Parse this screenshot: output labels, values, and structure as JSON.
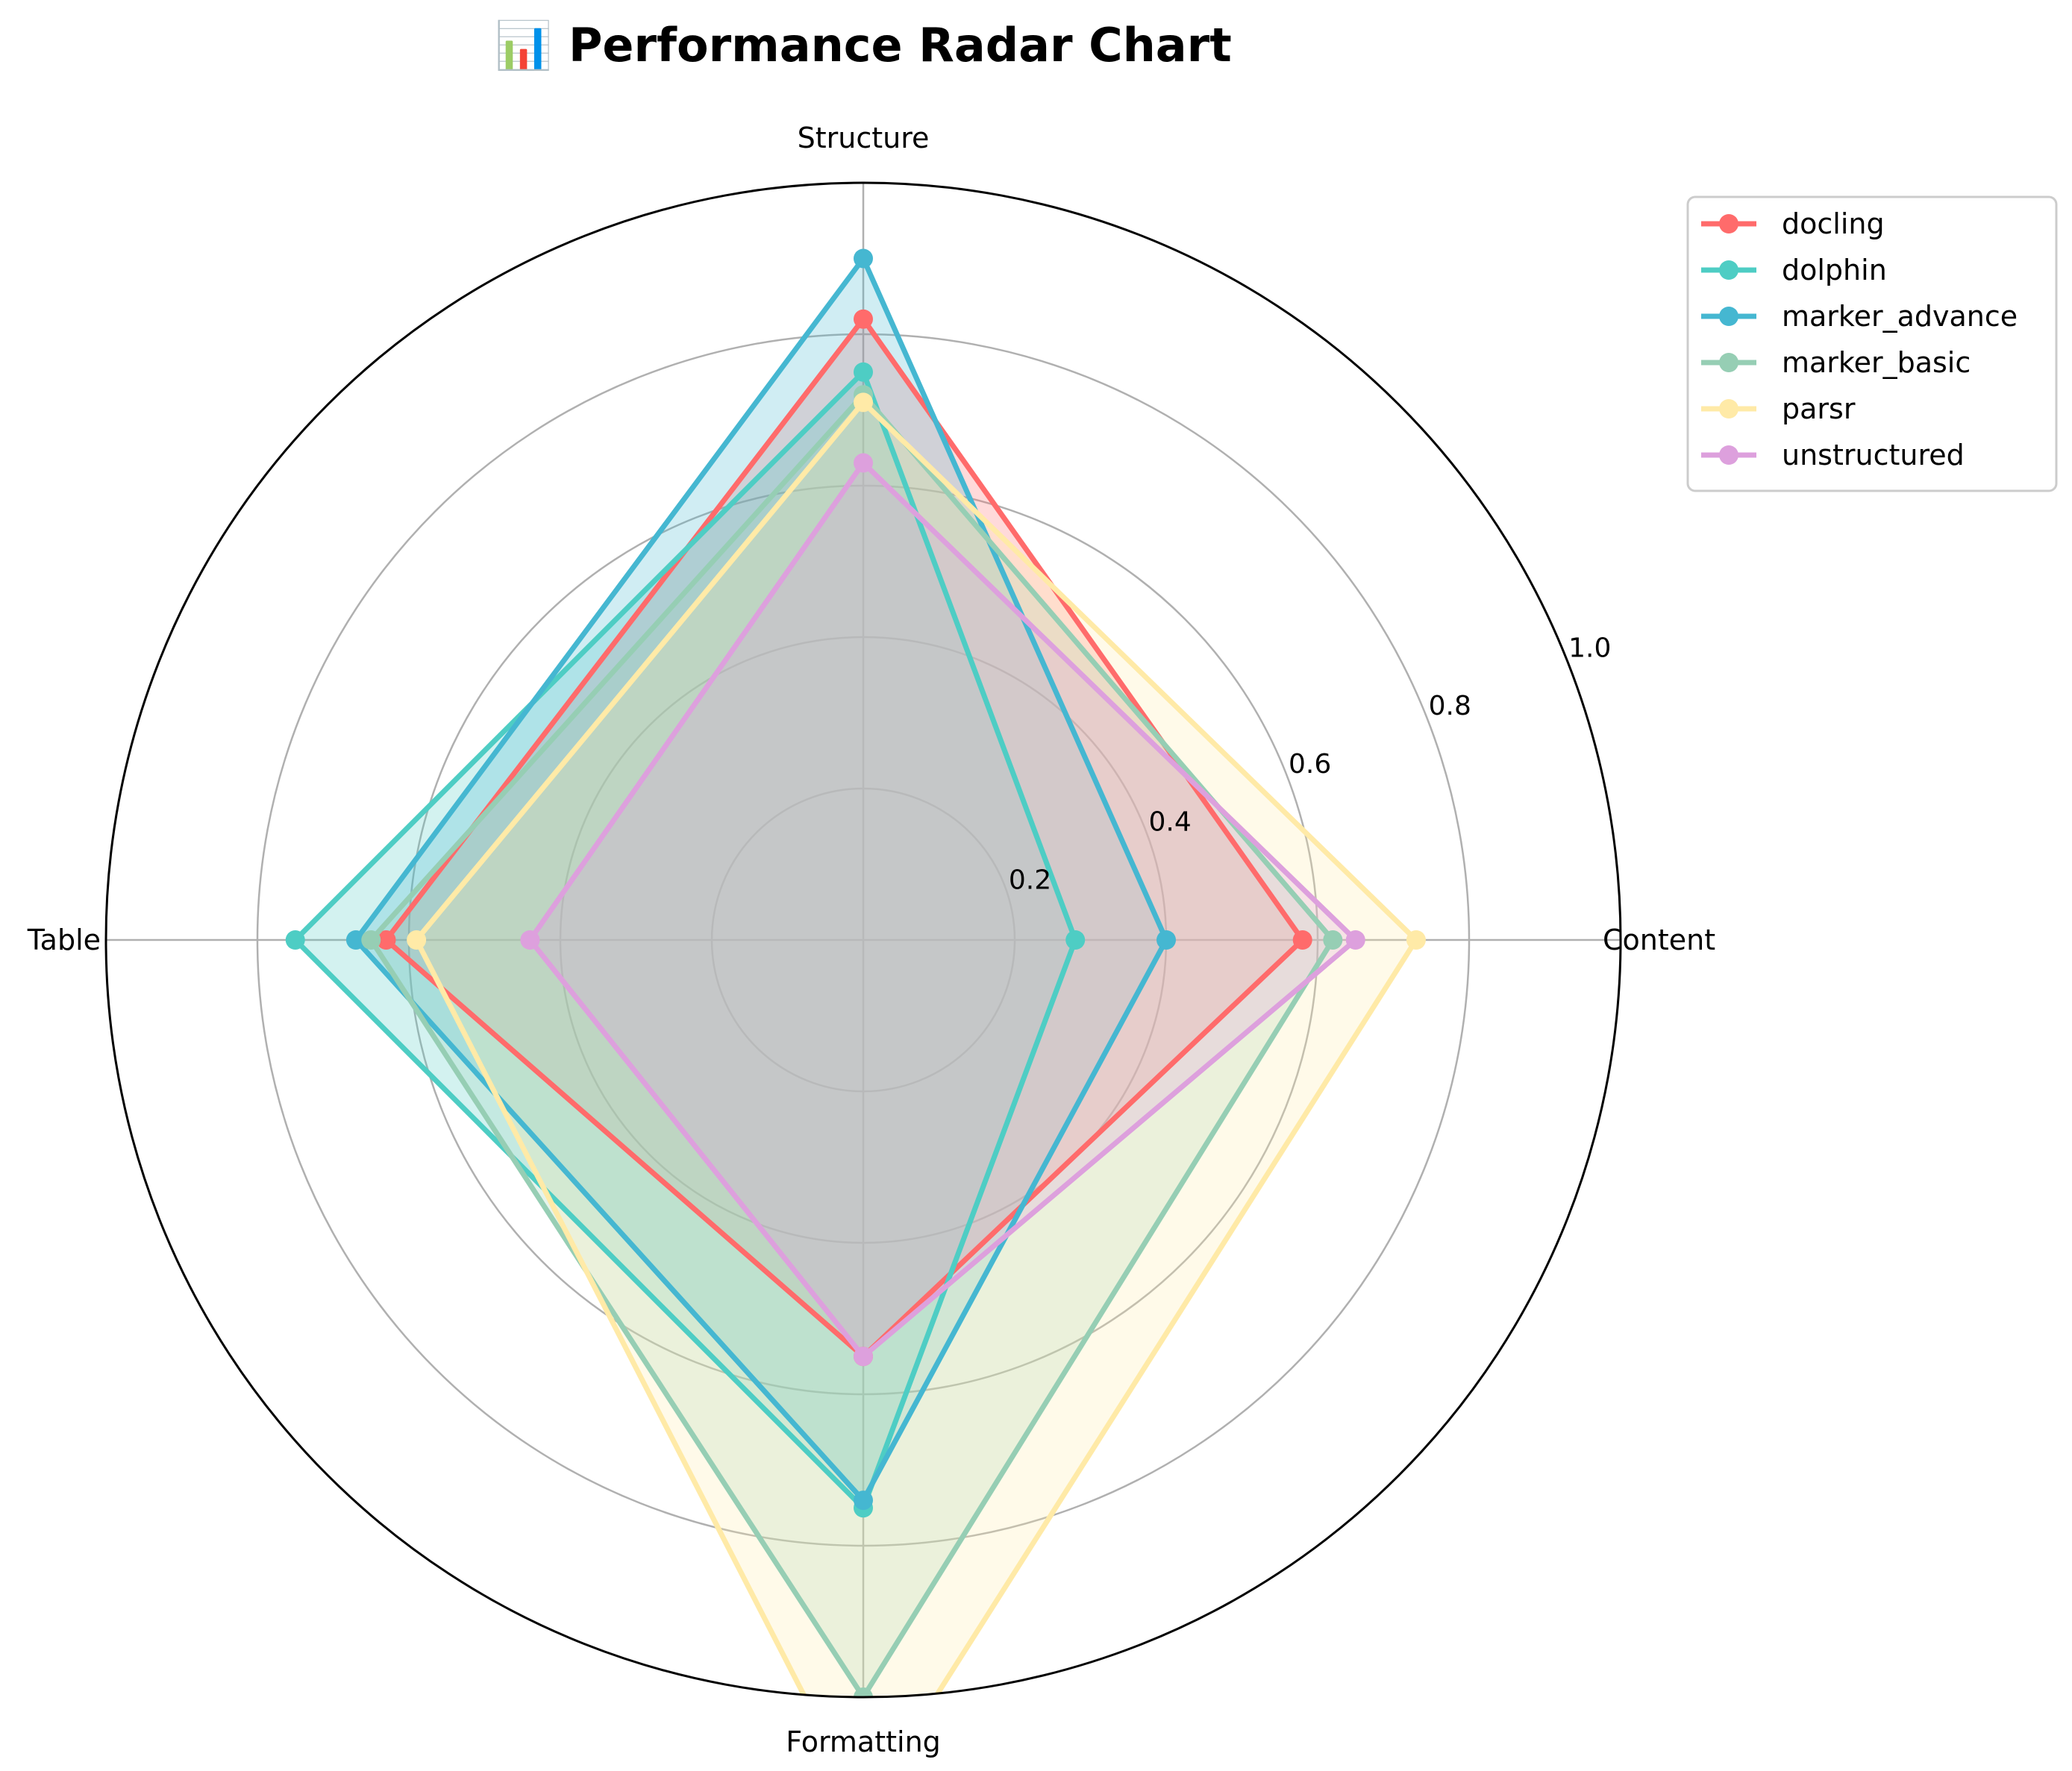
{
  "chart_data": {
    "type": "radar",
    "title": "📊 Performance Radar Chart",
    "axes": [
      "Content",
      "Structure",
      "Table",
      "Formatting"
    ],
    "rlim": [
      0,
      1.0
    ],
    "rticks": [
      0.2,
      0.4,
      0.6,
      0.8,
      1.0
    ],
    "rtick_labels": [
      "0.2",
      "0.4",
      "0.6",
      "0.8",
      "1.0"
    ],
    "grid": true,
    "legend_position": "top-right, outside",
    "series": [
      {
        "name": "docling",
        "color": "#ff6b6b",
        "values": [
          0.58,
          0.82,
          0.63,
          0.55
        ]
      },
      {
        "name": "dolphin",
        "color": "#4ecdc4",
        "values": [
          0.28,
          0.75,
          0.75,
          0.75
        ]
      },
      {
        "name": "marker_advance",
        "color": "#45b7d1",
        "values": [
          0.4,
          0.9,
          0.67,
          0.74
        ]
      },
      {
        "name": "marker_basic",
        "color": "#96ceb4",
        "values": [
          0.62,
          0.72,
          0.65,
          1.0
        ]
      },
      {
        "name": "parsr",
        "color": "#ffeaa7",
        "values": [
          0.73,
          0.71,
          0.59,
          1.15
        ]
      },
      {
        "name": "unstructured",
        "color": "#dda0dd",
        "values": [
          0.65,
          0.63,
          0.44,
          0.55
        ]
      }
    ]
  }
}
